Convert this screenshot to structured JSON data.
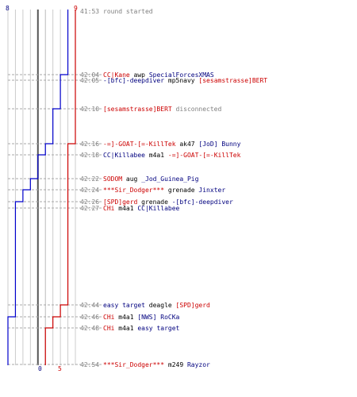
{
  "chart_data": {
    "type": "line",
    "title": "",
    "xlim": [
      0,
      9
    ],
    "grid": true,
    "series": [
      {
        "color": "#0000cc",
        "start": 8,
        "end": 0,
        "steps": [
          {
            "time": "42:04",
            "value": 7
          },
          {
            "time": "42:05",
            "value": 7
          },
          {
            "time": "42:16",
            "value": 6
          },
          {
            "time": "42:18",
            "value": 5
          },
          {
            "time": "42:22",
            "value": 4
          },
          {
            "time": "42:24",
            "value": 3
          },
          {
            "time": "42:26",
            "value": 2
          },
          {
            "time": "42:27",
            "value": 1
          },
          {
            "time": "42:44",
            "value": 1
          },
          {
            "time": "42:46",
            "value": 1
          },
          {
            "time": "42:48",
            "value": 0
          },
          {
            "time": "42:54",
            "value": 0
          }
        ]
      },
      {
        "color": "#cc0000",
        "start": 9,
        "end": 5,
        "steps": [
          {
            "time": "42:04",
            "value": 9
          },
          {
            "time": "42:05",
            "value": 9
          },
          {
            "time": "42:16",
            "value": 9
          },
          {
            "time": "42:18",
            "value": 8
          },
          {
            "time": "42:22",
            "value": 8
          },
          {
            "time": "42:24",
            "value": 8
          },
          {
            "time": "42:26",
            "value": 8
          },
          {
            "time": "42:27",
            "value": 8
          },
          {
            "time": "42:44",
            "value": 8
          },
          {
            "time": "42:46",
            "value": 7
          },
          {
            "time": "42:48",
            "value": 6
          },
          {
            "time": "42:54",
            "value": 5
          }
        ]
      }
    ],
    "axis_labels": {
      "blue_top": "8",
      "red_top": "9",
      "blue_bottom": "0",
      "red_bottom": "5"
    },
    "events": [
      {
        "time": "41:53",
        "parts": [
          {
            "text": "round started",
            "color": "gray"
          }
        ]
      },
      {
        "time": "42:04",
        "parts": [
          {
            "text": "CC|Kane",
            "color": "red"
          },
          {
            "text": " awp ",
            "color": "black"
          },
          {
            "text": "SpecialForcesXMAS",
            "color": "blue"
          }
        ]
      },
      {
        "time": "42:05",
        "parts": [
          {
            "text": "-[bfc]-deepdiver",
            "color": "blue"
          },
          {
            "text": " mp5navy ",
            "color": "black"
          },
          {
            "text": "[sesamstrasse]BERT",
            "color": "red"
          }
        ]
      },
      {
        "time": "42:10",
        "parts": [
          {
            "text": "[sesamstrasse]BERT",
            "color": "red"
          },
          {
            "text": " disconnected",
            "color": "gray"
          }
        ]
      },
      {
        "time": "42:16",
        "parts": [
          {
            "text": "-=]-GOAT-[=-KillTek",
            "color": "red"
          },
          {
            "text": " ak47 ",
            "color": "black"
          },
          {
            "text": "[JoD] Bunny",
            "color": "blue"
          }
        ]
      },
      {
        "time": "42:18",
        "parts": [
          {
            "text": "CC|Killabee",
            "color": "blue"
          },
          {
            "text": " m4a1 ",
            "color": "black"
          },
          {
            "text": "-=]-GOAT-[=-KillTek",
            "color": "red"
          }
        ]
      },
      {
        "time": "42:22",
        "parts": [
          {
            "text": "SODOM",
            "color": "red"
          },
          {
            "text": " aug ",
            "color": "black"
          },
          {
            "text": "_Jod_Guinea_Pig",
            "color": "blue"
          }
        ]
      },
      {
        "time": "42:24",
        "parts": [
          {
            "text": "***Sir_Dodger***",
            "color": "red"
          },
          {
            "text": " grenade ",
            "color": "black"
          },
          {
            "text": "Jinxter",
            "color": "blue"
          }
        ]
      },
      {
        "time": "42:26",
        "parts": [
          {
            "text": "[SPD]gerd",
            "color": "red"
          },
          {
            "text": " grenade ",
            "color": "black"
          },
          {
            "text": "-[bfc]-deepdiver",
            "color": "blue"
          }
        ]
      },
      {
        "time": "42:27",
        "parts": [
          {
            "text": "CHi",
            "color": "red"
          },
          {
            "text": " m4a1 ",
            "color": "black"
          },
          {
            "text": "CC|Killabee",
            "color": "blue"
          }
        ]
      },
      {
        "time": "42:44",
        "parts": [
          {
            "text": "easy target",
            "color": "blue"
          },
          {
            "text": " deagle ",
            "color": "black"
          },
          {
            "text": "[SPD]gerd",
            "color": "red"
          }
        ]
      },
      {
        "time": "42:46",
        "parts": [
          {
            "text": "CHi",
            "color": "red"
          },
          {
            "text": " m4a1 ",
            "color": "black"
          },
          {
            "text": "[NWS] RoCKa",
            "color": "blue"
          }
        ]
      },
      {
        "time": "42:48",
        "parts": [
          {
            "text": "CHi",
            "color": "red"
          },
          {
            "text": " m4a1 ",
            "color": "black"
          },
          {
            "text": "easy target",
            "color": "blue"
          }
        ]
      },
      {
        "time": "42:54",
        "parts": [
          {
            "text": "***Sir_Dodger***",
            "color": "red"
          },
          {
            "text": " m249 ",
            "color": "black"
          },
          {
            "text": "Rayzor",
            "color": "blue"
          }
        ]
      }
    ]
  }
}
